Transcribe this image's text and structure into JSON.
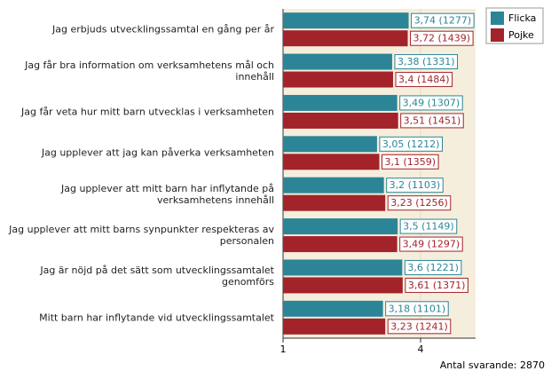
{
  "chart_data": {
    "type": "bar",
    "orientation": "horizontal",
    "categories": [
      "Jag erbjuds utvecklingssamtal en gång per år",
      "Jag får bra information om verksamhetens mål och\ninnehåll",
      "Jag får veta hur mitt barn utvecklas i verksamheten",
      "Jag upplever att jag kan påverka verksamheten",
      "Jag upplever att mitt barn har inflytande på\nverksamhetens innehåll",
      "Jag upplever att mitt barns synpunkter respekteras av\npersonalen",
      "Jag är nöjd på det sätt som utvecklingssamtalet\ngenomförs",
      "Mitt barn har inflytande vid utvecklingssamtalet"
    ],
    "series": [
      {
        "name": "Flicka",
        "color": "#2b8596",
        "values": [
          3.74,
          3.38,
          3.49,
          3.05,
          3.2,
          3.5,
          3.6,
          3.18
        ],
        "value_labels": [
          "3,74 (1277)",
          "3,38 (1331)",
          "3,49 (1307)",
          "3,05 (1212)",
          "3,2 (1103)",
          "3,5 (1149)",
          "3,6 (1221)",
          "3,18 (1101)"
        ]
      },
      {
        "name": "Pojke",
        "color": "#a3232b",
        "values": [
          3.72,
          3.4,
          3.51,
          3.1,
          3.23,
          3.49,
          3.61,
          3.23
        ],
        "value_labels": [
          "3,72 (1439)",
          "3,4 (1484)",
          "3,51 (1451)",
          "3,1 (1359)",
          "3,23 (1256)",
          "3,49 (1297)",
          "3,61 (1371)",
          "3,23 (1241)"
        ]
      }
    ],
    "xlim": [
      1,
      5.2
    ],
    "xticks": [
      1,
      4
    ],
    "legend": "top-right",
    "annotation": "Antal svarande: 2870"
  }
}
